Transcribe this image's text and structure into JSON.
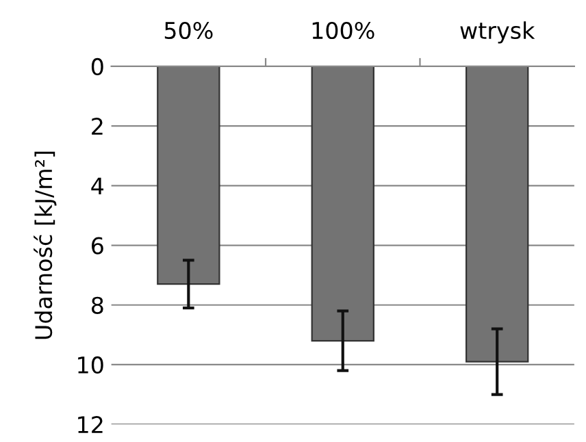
{
  "chart_data": {
    "type": "bar",
    "ylabel": "Udarność [kJ/m²]",
    "categories": [
      "50%",
      "100%",
      "wtrysk"
    ],
    "values": [
      7.3,
      9.2,
      9.9
    ],
    "errors": [
      0.8,
      1.0,
      1.1
    ],
    "color": "#737373",
    "ylim": [
      12,
      0
    ],
    "yticks": [
      0,
      2,
      4,
      6,
      8,
      10,
      12
    ],
    "grid": "y"
  }
}
